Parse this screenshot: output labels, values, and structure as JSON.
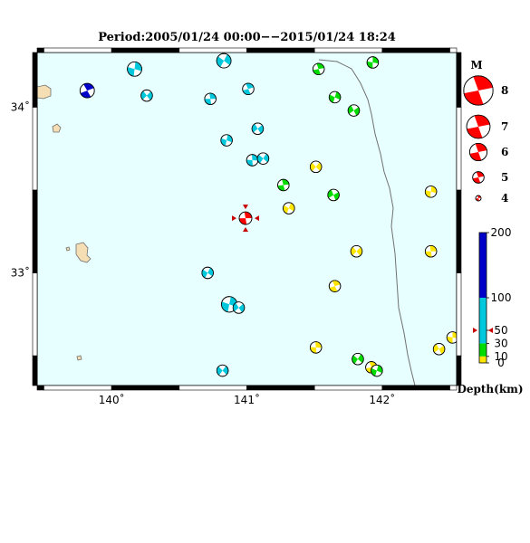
{
  "title": "Period:2005/01/24 00:00−−2015/01/24 18:24",
  "map": {
    "lon_range": [
      139.45,
      142.55
    ],
    "lat_range": [
      32.32,
      34.33
    ],
    "sea_color": "#e8ffff",
    "x_ticks": [
      "140˚",
      "141˚",
      "142˚"
    ],
    "y_ticks": [
      "34˚",
      "33˚"
    ]
  },
  "target": {
    "lon": 140.99,
    "lat": 33.33,
    "mag": 5.2,
    "color": "#ff0000"
  },
  "events": [
    {
      "lon": 139.82,
      "lat": 34.1,
      "mag": 5.5,
      "color": "#0000c8"
    },
    {
      "lon": 140.17,
      "lat": 34.23,
      "mag": 5.5,
      "color": "#00c8dc"
    },
    {
      "lon": 140.26,
      "lat": 34.07,
      "mag": 5.0,
      "color": "#00c8dc"
    },
    {
      "lon": 140.73,
      "lat": 34.05,
      "mag": 5.0,
      "color": "#00c8dc"
    },
    {
      "lon": 140.83,
      "lat": 34.28,
      "mag": 5.5,
      "color": "#00c8dc"
    },
    {
      "lon": 141.01,
      "lat": 34.11,
      "mag": 5.0,
      "color": "#00c8dc"
    },
    {
      "lon": 140.85,
      "lat": 33.8,
      "mag": 5.0,
      "color": "#00c8dc"
    },
    {
      "lon": 141.08,
      "lat": 33.87,
      "mag": 5.0,
      "color": "#00c8dc"
    },
    {
      "lon": 141.04,
      "lat": 33.68,
      "mag": 5.0,
      "color": "#00c8dc"
    },
    {
      "lon": 141.12,
      "lat": 33.69,
      "mag": 5.0,
      "color": "#00c8dc"
    },
    {
      "lon": 141.53,
      "lat": 34.23,
      "mag": 5.0,
      "color": "#00dc00"
    },
    {
      "lon": 141.65,
      "lat": 34.06,
      "mag": 5.0,
      "color": "#00dc00"
    },
    {
      "lon": 141.79,
      "lat": 33.98,
      "mag": 5.0,
      "color": "#00dc00"
    },
    {
      "lon": 141.93,
      "lat": 34.27,
      "mag": 5.0,
      "color": "#00dc00"
    },
    {
      "lon": 141.51,
      "lat": 33.64,
      "mag": 5.0,
      "color": "#ffe600"
    },
    {
      "lon": 141.27,
      "lat": 33.53,
      "mag": 5.0,
      "color": "#00dc00"
    },
    {
      "lon": 141.31,
      "lat": 33.39,
      "mag": 5.0,
      "color": "#ffe600"
    },
    {
      "lon": 141.64,
      "lat": 33.47,
      "mag": 5.0,
      "color": "#00dc00"
    },
    {
      "lon": 142.36,
      "lat": 33.49,
      "mag": 5.0,
      "color": "#ffe600"
    },
    {
      "lon": 141.81,
      "lat": 33.13,
      "mag": 5.0,
      "color": "#ffe600"
    },
    {
      "lon": 142.36,
      "lat": 33.13,
      "mag": 5.0,
      "color": "#ffe600"
    },
    {
      "lon": 140.71,
      "lat": 33.0,
      "mag": 5.0,
      "color": "#00c8dc"
    },
    {
      "lon": 141.65,
      "lat": 32.92,
      "mag": 5.0,
      "color": "#ffe600"
    },
    {
      "lon": 140.87,
      "lat": 32.81,
      "mag": 5.7,
      "color": "#00c8dc"
    },
    {
      "lon": 140.94,
      "lat": 32.79,
      "mag": 5.0,
      "color": "#00c8dc"
    },
    {
      "lon": 141.51,
      "lat": 32.55,
      "mag": 5.0,
      "color": "#ffe600"
    },
    {
      "lon": 141.82,
      "lat": 32.48,
      "mag": 5.0,
      "color": "#00dc00"
    },
    {
      "lon": 141.92,
      "lat": 32.43,
      "mag": 5.0,
      "color": "#ffe600"
    },
    {
      "lon": 141.96,
      "lat": 32.41,
      "mag": 5.0,
      "color": "#00dc00"
    },
    {
      "lon": 142.42,
      "lat": 32.54,
      "mag": 5.0,
      "color": "#ffe600"
    },
    {
      "lon": 142.52,
      "lat": 32.61,
      "mag": 5.0,
      "color": "#ffe600"
    },
    {
      "lon": 140.82,
      "lat": 32.41,
      "mag": 5.0,
      "color": "#00c8dc"
    }
  ],
  "mag_legend": {
    "title": "M",
    "items": [
      {
        "mag": 8,
        "label": "8"
      },
      {
        "mag": 7,
        "label": "7"
      },
      {
        "mag": 6,
        "label": "6"
      },
      {
        "mag": 5,
        "label": "5"
      },
      {
        "mag": 4,
        "label": "4"
      }
    ]
  },
  "depth_legend": {
    "max": 200,
    "labels": [
      "200",
      "100",
      "50",
      "30",
      "10",
      "0"
    ],
    "label_values": [
      200,
      100,
      50,
      30,
      10,
      0
    ],
    "bands": [
      {
        "from": 0,
        "to": 10,
        "color": "#ffe600"
      },
      {
        "from": 10,
        "to": 30,
        "color": "#00dc00"
      },
      {
        "from": 30,
        "to": 100,
        "color": "#00c8dc"
      },
      {
        "from": 100,
        "to": 200,
        "color": "#0000c8"
      }
    ],
    "marker_depth": 50,
    "title": "Depth(km)"
  }
}
